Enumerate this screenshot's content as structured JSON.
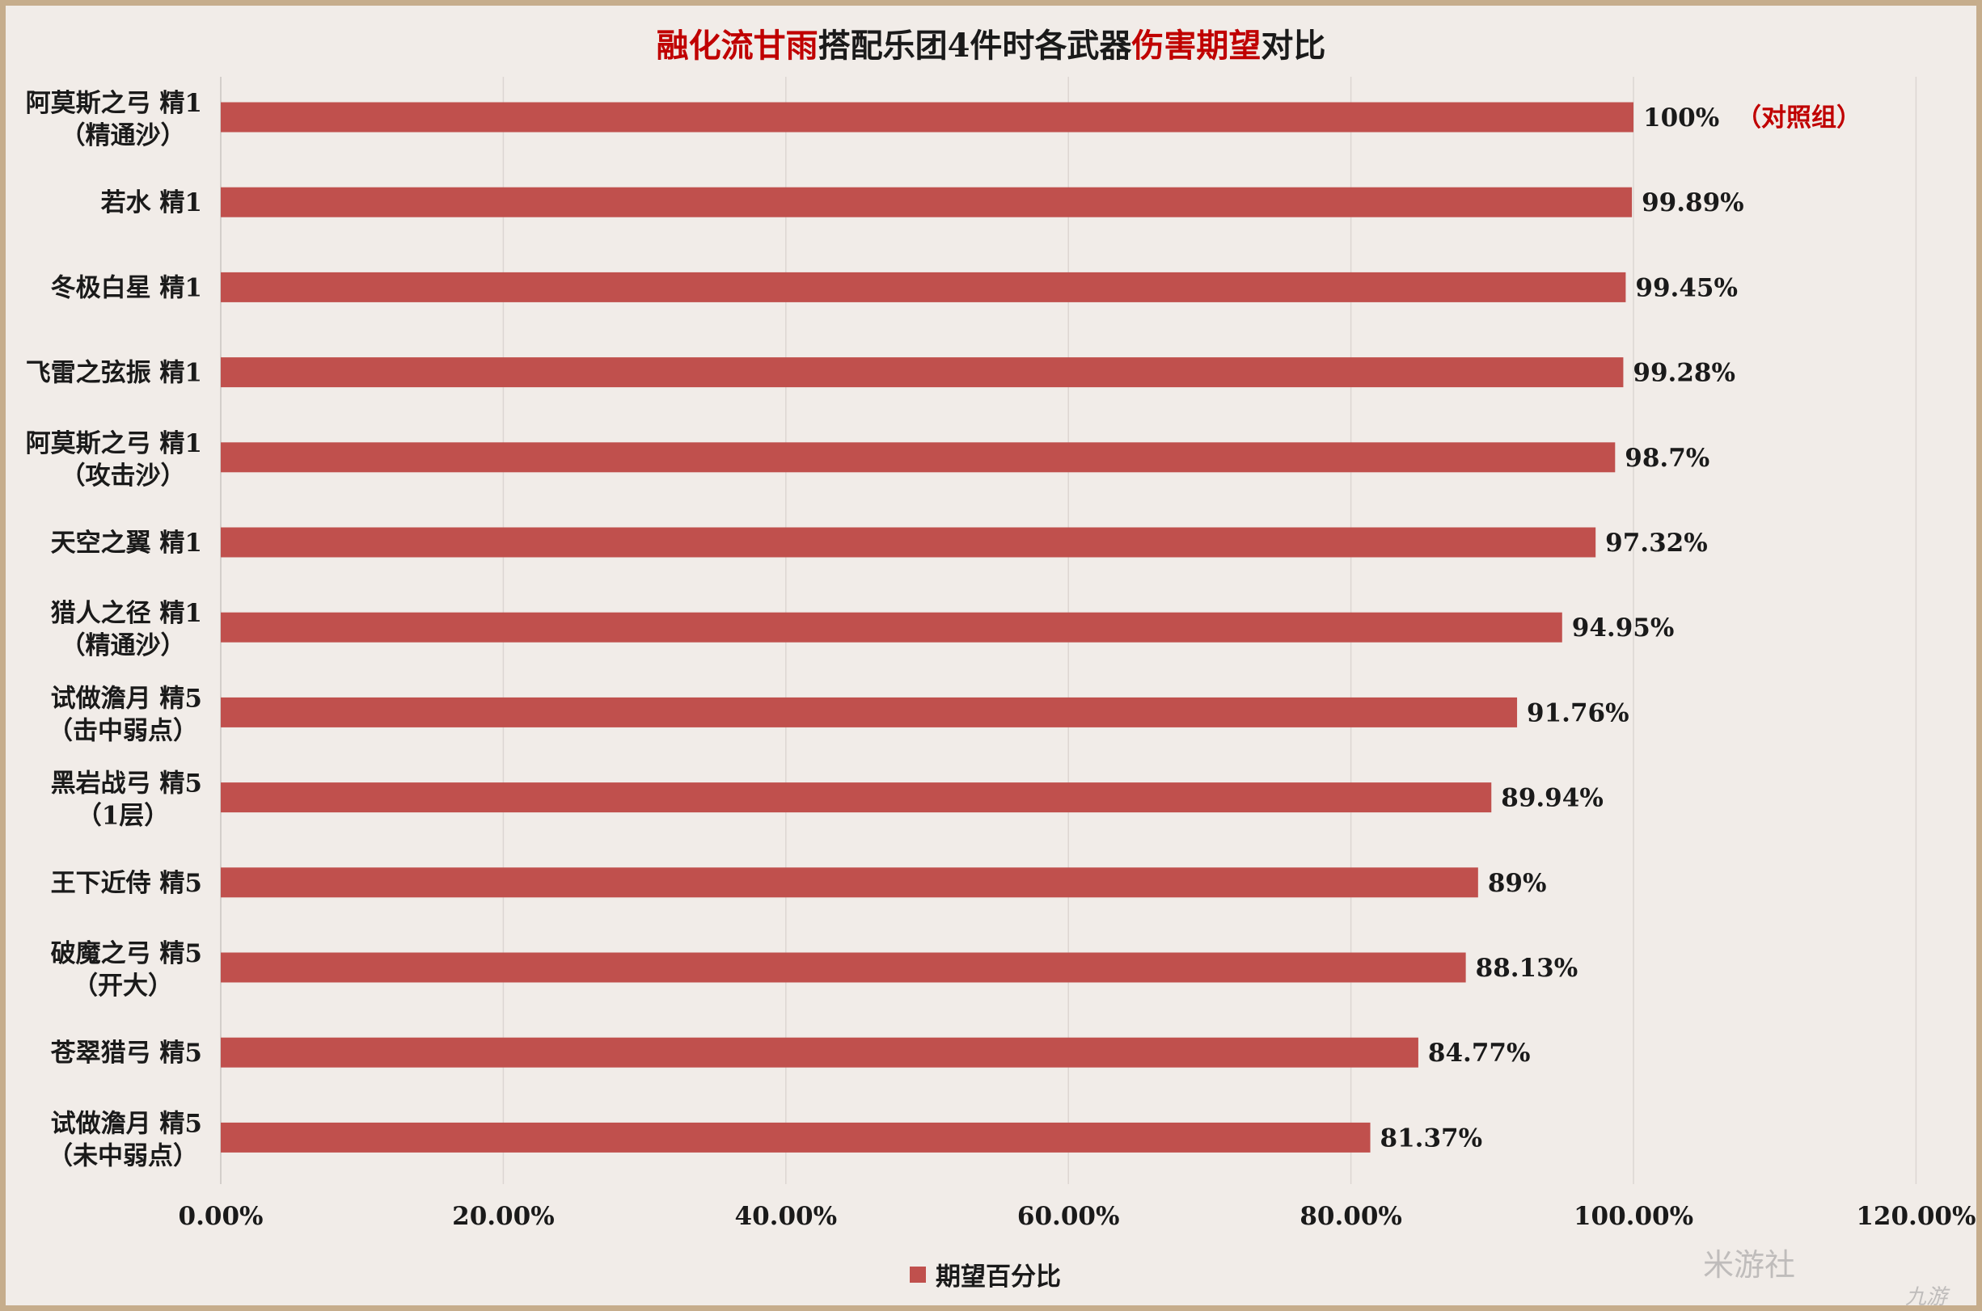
{
  "chart_data": {
    "type": "bar",
    "orientation": "horizontal",
    "title_parts": [
      {
        "text": "融化流甘雨",
        "highlight": true
      },
      {
        "text": "搭配乐团4件时各武器",
        "highlight": false
      },
      {
        "text": "伤害期望",
        "highlight": true
      },
      {
        "text": "对比",
        "highlight": false
      }
    ],
    "categories": [
      [
        "阿莫斯之弓 精1",
        "（精通沙）"
      ],
      [
        "若水 精1"
      ],
      [
        "冬极白星 精1"
      ],
      [
        "飞雷之弦振 精1"
      ],
      [
        "阿莫斯之弓 精1",
        "（攻击沙）"
      ],
      [
        "天空之翼 精1"
      ],
      [
        "猎人之径 精1",
        "（精通沙）"
      ],
      [
        "试做澹月 精5",
        "（击中弱点）"
      ],
      [
        "黑岩战弓 精5",
        "（1层）"
      ],
      [
        "王下近侍 精5"
      ],
      [
        "破魔之弓 精5",
        "（开大）"
      ],
      [
        "苍翠猎弓 精5"
      ],
      [
        "试做澹月 精5",
        "（未中弱点）"
      ]
    ],
    "series": [
      {
        "name": "期望百分比",
        "values": [
          100,
          99.89,
          99.45,
          99.28,
          98.7,
          97.32,
          94.95,
          91.76,
          89.94,
          89,
          88.13,
          84.77,
          81.37
        ],
        "labels": [
          "100%",
          "99.89%",
          "99.45%",
          "99.28%",
          "98.7%",
          "97.32%",
          "94.95%",
          "91.76%",
          "89.94%",
          "89%",
          "88.13%",
          "84.77%",
          "81.37%"
        ],
        "color": "#c0504d"
      }
    ],
    "annotation": {
      "index": 0,
      "text": "（对照组）",
      "color": "#c00000"
    },
    "xlim": [
      0,
      120
    ],
    "xticks": [
      "0.00%",
      "20.00%",
      "40.00%",
      "60.00%",
      "80.00%",
      "100.00%",
      "120.00%"
    ],
    "grid": true,
    "legend": "bottom"
  },
  "watermark": "米游社",
  "watermark_secondary": "九游"
}
